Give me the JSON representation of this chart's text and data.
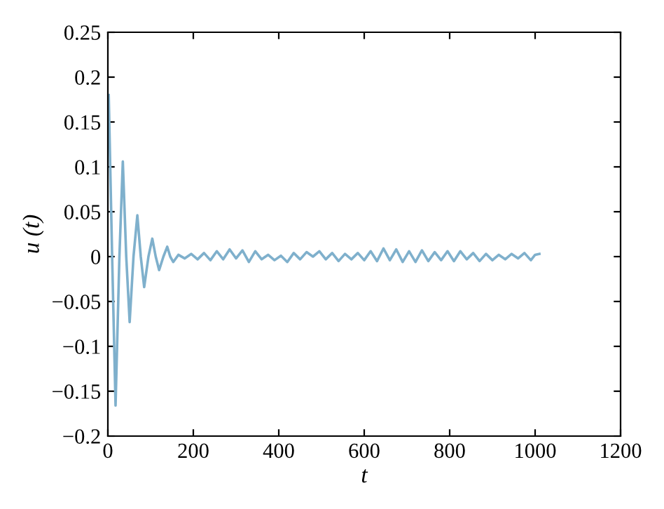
{
  "chart_data": {
    "type": "line",
    "xlabel": "t",
    "ylabel": "u (t)",
    "xlim": [
      0,
      1200
    ],
    "ylim": [
      -0.2,
      0.25
    ],
    "xticks": [
      0,
      200,
      400,
      600,
      800,
      1000,
      1200
    ],
    "yticks": [
      {
        "value": -0.2,
        "label": "−0.2"
      },
      {
        "value": -0.15,
        "label": "−0.15"
      },
      {
        "value": -0.1,
        "label": "−0.1"
      },
      {
        "value": -0.05,
        "label": "−0.05"
      },
      0,
      0.05,
      0.1,
      0.15,
      0.2,
      0.25
    ],
    "grid": false,
    "marker": "none",
    "line_style": "solid",
    "series": [
      {
        "color": "#7fb0cc",
        "x": [
          2,
          10,
          18,
          27,
          35,
          43,
          51,
          60,
          69,
          77,
          85,
          95,
          104,
          112,
          120,
          130,
          139,
          146,
          153,
          165,
          180,
          195,
          210,
          225,
          240,
          255,
          270,
          285,
          300,
          315,
          330,
          345,
          360,
          375,
          390,
          405,
          420,
          435,
          450,
          465,
          480,
          495,
          510,
          525,
          540,
          555,
          570,
          585,
          600,
          615,
          630,
          645,
          660,
          675,
          690,
          705,
          720,
          735,
          750,
          765,
          780,
          795,
          810,
          825,
          840,
          855,
          870,
          885,
          900,
          915,
          930,
          945,
          960,
          975,
          990,
          1000,
          1010
        ],
        "values": [
          0.18,
          0.0,
          -0.166,
          0.0,
          0.106,
          0.0,
          -0.073,
          0.0,
          0.046,
          0.0,
          -0.034,
          0.0,
          0.02,
          0.0,
          -0.015,
          0.0,
          0.011,
          0.0,
          -0.006,
          0.002,
          -0.002,
          0.003,
          -0.003,
          0.004,
          -0.004,
          0.006,
          -0.003,
          0.008,
          -0.002,
          0.007,
          -0.006,
          0.006,
          -0.003,
          0.002,
          -0.004,
          0.001,
          -0.006,
          0.004,
          -0.003,
          0.005,
          0.0,
          0.006,
          -0.003,
          0.004,
          -0.005,
          0.003,
          -0.003,
          0.004,
          -0.004,
          0.006,
          -0.005,
          0.009,
          -0.004,
          0.008,
          -0.006,
          0.006,
          -0.006,
          0.007,
          -0.005,
          0.005,
          -0.004,
          0.006,
          -0.005,
          0.006,
          -0.003,
          0.004,
          -0.005,
          0.003,
          -0.004,
          0.002,
          -0.003,
          0.003,
          -0.002,
          0.004,
          -0.004,
          0.002,
          0.003
        ]
      }
    ]
  }
}
